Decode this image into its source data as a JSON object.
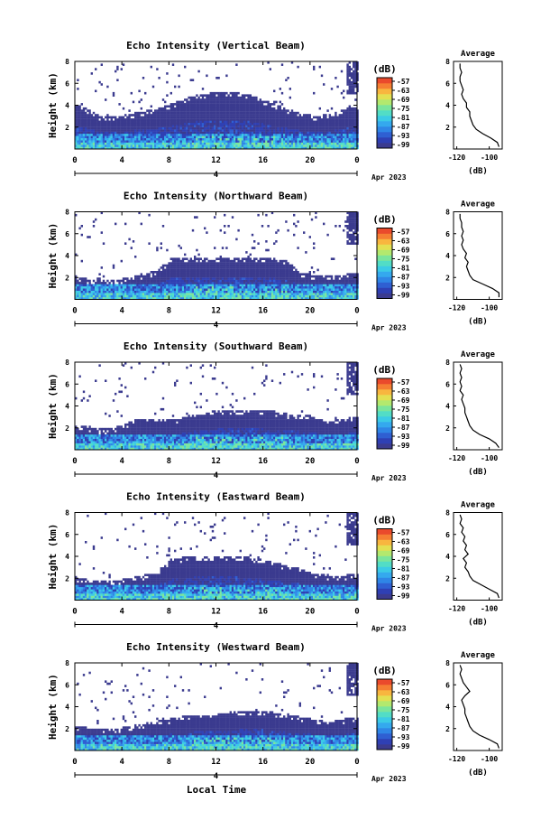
{
  "colors": {
    "scale": [
      "#3b3b8f",
      "#2f40b4",
      "#2f5fd2",
      "#2f86e6",
      "#34a9ee",
      "#3ccbe6",
      "#52ddc6",
      "#7be59c",
      "#b3e96e",
      "#e3e052",
      "#f8b63f",
      "#f57f33",
      "#ea4a2c"
    ],
    "echo_fill": "#3b3b8f"
  },
  "footer": {
    "xlabel": "Local Time"
  },
  "chart_data": [
    {
      "type": "heatmap",
      "title": "Echo Intensity (Vertical Beam)",
      "ylabel": "Height (km)",
      "yticks": [
        "2",
        "4",
        "6",
        "8"
      ],
      "ylim": [
        0,
        8
      ],
      "xticks": [
        "0",
        "4",
        "8",
        "12",
        "16",
        "20",
        "0"
      ],
      "xlim": [
        0,
        24
      ],
      "date_label": "4",
      "month_label": "Apr 2023",
      "colorbar": {
        "unit": "(dB)",
        "labels": [
          "-57",
          "-63",
          "-69",
          "-75",
          "-81",
          "-87",
          "-93",
          "-99"
        ]
      },
      "echo_top_km": [
        4.0,
        3.6,
        3.0,
        2.8,
        3.0,
        3.2,
        3.4,
        3.6,
        4.0,
        4.4,
        4.8,
        5.0,
        5.2,
        5.2,
        5.0,
        4.8,
        4.4,
        4.0,
        3.6,
        3.2,
        3.0,
        3.0,
        3.2,
        3.6,
        3.8
      ],
      "average": {
        "title": "Average",
        "xlabel": "(dB)",
        "xticks": [
          "-120",
          "-100"
        ],
        "xlim": [
          -122,
          -92
        ],
        "yticks": [
          "2",
          "4",
          "6",
          "8"
        ],
        "ylim": [
          0,
          8
        ],
        "height_km": [
          0.2,
          0.6,
          1.0,
          1.4,
          1.8,
          2.2,
          2.6,
          3.0,
          3.4,
          3.8,
          4.2,
          4.6,
          5.0,
          5.4,
          5.8,
          6.2,
          6.6,
          7.0,
          7.4,
          7.8
        ],
        "value_db": [
          -94,
          -95,
          -99,
          -104,
          -108,
          -110,
          -111,
          -112,
          -112,
          -114,
          -114,
          -116,
          -117,
          -116,
          -117,
          -118,
          -118,
          -117,
          -118,
          -118
        ]
      }
    },
    {
      "type": "heatmap",
      "title": "Echo Intensity (Northward Beam)",
      "ylabel": "Height (km)",
      "yticks": [
        "2",
        "4",
        "6",
        "8"
      ],
      "ylim": [
        0,
        8
      ],
      "xticks": [
        "0",
        "4",
        "8",
        "12",
        "16",
        "20",
        "0"
      ],
      "xlim": [
        0,
        24
      ],
      "date_label": "4",
      "month_label": "Apr 2023",
      "colorbar": {
        "unit": "(dB)",
        "labels": [
          "-57",
          "-63",
          "-69",
          "-75",
          "-81",
          "-87",
          "-93",
          "-99"
        ]
      },
      "echo_top_km": [
        2.0,
        1.8,
        1.6,
        1.6,
        1.8,
        2.0,
        2.2,
        2.6,
        3.6,
        3.8,
        3.8,
        3.8,
        3.8,
        3.8,
        3.8,
        3.8,
        3.8,
        3.6,
        3.4,
        2.4,
        2.2,
        2.0,
        2.0,
        2.2,
        2.4
      ],
      "average": {
        "title": "Average",
        "xlabel": "(dB)",
        "xticks": [
          "-120",
          "-100"
        ],
        "xlim": [
          -122,
          -92
        ],
        "yticks": [
          "2",
          "4",
          "6",
          "8"
        ],
        "ylim": [
          0,
          8
        ],
        "height_km": [
          0.2,
          0.6,
          1.0,
          1.4,
          1.8,
          2.2,
          2.6,
          3.0,
          3.4,
          3.8,
          4.2,
          4.6,
          5.0,
          5.4,
          5.8,
          6.2,
          6.6,
          7.0,
          7.4,
          7.8
        ],
        "value_db": [
          -94,
          -94,
          -98,
          -104,
          -110,
          -112,
          -113,
          -114,
          -113,
          -115,
          -114,
          -116,
          -117,
          -116,
          -117,
          -116,
          -117,
          -117,
          -118,
          -118
        ]
      }
    },
    {
      "type": "heatmap",
      "title": "Echo Intensity (Southward Beam)",
      "ylabel": "Height (km)",
      "yticks": [
        "2",
        "4",
        "6",
        "8"
      ],
      "ylim": [
        0,
        8
      ],
      "xticks": [
        "0",
        "4",
        "8",
        "12",
        "16",
        "20",
        "0"
      ],
      "xlim": [
        0,
        24
      ],
      "date_label": "4",
      "month_label": "Apr 2023",
      "colorbar": {
        "unit": "(dB)",
        "labels": [
          "-57",
          "-63",
          "-69",
          "-75",
          "-81",
          "-87",
          "-93",
          "-99"
        ]
      },
      "echo_top_km": [
        2.0,
        2.0,
        1.8,
        1.8,
        2.2,
        2.6,
        2.8,
        2.8,
        2.8,
        2.8,
        3.2,
        3.2,
        3.6,
        3.6,
        3.6,
        3.6,
        3.6,
        3.4,
        3.2,
        3.2,
        3.0,
        2.6,
        2.6,
        2.8,
        3.0
      ],
      "average": {
        "title": "Average",
        "xlabel": "(dB)",
        "xticks": [
          "-120",
          "-100"
        ],
        "xlim": [
          -122,
          -92
        ],
        "yticks": [
          "2",
          "4",
          "6",
          "8"
        ],
        "ylim": [
          0,
          8
        ],
        "height_km": [
          0.2,
          0.6,
          1.0,
          1.4,
          1.8,
          2.2,
          2.6,
          3.0,
          3.4,
          3.8,
          4.2,
          4.6,
          5.0,
          5.4,
          5.8,
          6.2,
          6.6,
          7.0,
          7.4,
          7.8
        ],
        "value_db": [
          -94,
          -96,
          -100,
          -106,
          -110,
          -112,
          -113,
          -114,
          -115,
          -115,
          -116,
          -117,
          -116,
          -118,
          -117,
          -118,
          -117,
          -118,
          -117,
          -118
        ]
      }
    },
    {
      "type": "heatmap",
      "title": "Echo Intensity (Eastward Beam)",
      "ylabel": "Height (km)",
      "yticks": [
        "2",
        "4",
        "6",
        "8"
      ],
      "ylim": [
        0,
        8
      ],
      "xticks": [
        "0",
        "4",
        "8",
        "12",
        "16",
        "20",
        "0"
      ],
      "xlim": [
        0,
        24
      ],
      "date_label": "4",
      "month_label": "Apr 2023",
      "colorbar": {
        "unit": "(dB)",
        "labels": [
          "-57",
          "-63",
          "-69",
          "-75",
          "-81",
          "-87",
          "-93",
          "-99"
        ]
      },
      "echo_top_km": [
        2.0,
        1.8,
        1.6,
        1.6,
        1.8,
        2.0,
        2.2,
        2.6,
        3.6,
        3.8,
        4.0,
        4.0,
        4.0,
        4.0,
        4.0,
        3.8,
        3.6,
        3.4,
        3.0,
        2.8,
        2.4,
        2.2,
        2.0,
        2.2,
        2.4
      ],
      "average": {
        "title": "Average",
        "xlabel": "(dB)",
        "xticks": [
          "-120",
          "-100"
        ],
        "xlim": [
          -122,
          -92
        ],
        "yticks": [
          "2",
          "4",
          "6",
          "8"
        ],
        "ylim": [
          0,
          8
        ],
        "height_km": [
          0.2,
          0.6,
          1.0,
          1.4,
          1.8,
          2.2,
          2.6,
          3.0,
          3.4,
          3.8,
          4.2,
          4.6,
          5.0,
          5.4,
          5.8,
          6.2,
          6.6,
          7.0,
          7.4,
          7.8
        ],
        "value_db": [
          -94,
          -95,
          -100,
          -105,
          -110,
          -112,
          -113,
          -115,
          -114,
          -116,
          -113,
          -115,
          -114,
          -116,
          -115,
          -117,
          -116,
          -118,
          -117,
          -118
        ]
      }
    },
    {
      "type": "heatmap",
      "title": "Echo Intensity (Westward Beam)",
      "ylabel": "Height (km)",
      "yticks": [
        "2",
        "4",
        "6",
        "8"
      ],
      "ylim": [
        0,
        8
      ],
      "xticks": [
        "0",
        "4",
        "8",
        "12",
        "16",
        "20",
        "0"
      ],
      "xlim": [
        0,
        24
      ],
      "date_label": "4",
      "month_label": "Apr 2023",
      "colorbar": {
        "unit": "(dB)",
        "labels": [
          "-57",
          "-63",
          "-69",
          "-75",
          "-81",
          "-87",
          "-93",
          "-99"
        ]
      },
      "echo_top_km": [
        2.0,
        2.0,
        1.8,
        1.8,
        2.0,
        2.2,
        2.4,
        2.6,
        2.8,
        3.0,
        3.2,
        3.2,
        3.2,
        3.4,
        3.6,
        3.6,
        3.6,
        3.4,
        3.2,
        3.0,
        2.8,
        2.6,
        2.6,
        2.8,
        3.0
      ],
      "average": {
        "title": "Average",
        "xlabel": "(dB)",
        "xticks": [
          "-120",
          "-100"
        ],
        "xlim": [
          -122,
          -92
        ],
        "yticks": [
          "2",
          "4",
          "6",
          "8"
        ],
        "ylim": [
          0,
          8
        ],
        "height_km": [
          0.2,
          0.6,
          1.0,
          1.4,
          1.8,
          2.2,
          2.6,
          3.0,
          3.4,
          3.8,
          4.2,
          4.6,
          5.0,
          5.4,
          5.8,
          6.2,
          6.6,
          7.0,
          7.4,
          7.8
        ],
        "value_db": [
          -94,
          -95,
          -100,
          -106,
          -110,
          -112,
          -113,
          -114,
          -115,
          -115,
          -116,
          -117,
          -115,
          -112,
          -114,
          -116,
          -117,
          -118,
          -117,
          -118
        ]
      }
    }
  ]
}
